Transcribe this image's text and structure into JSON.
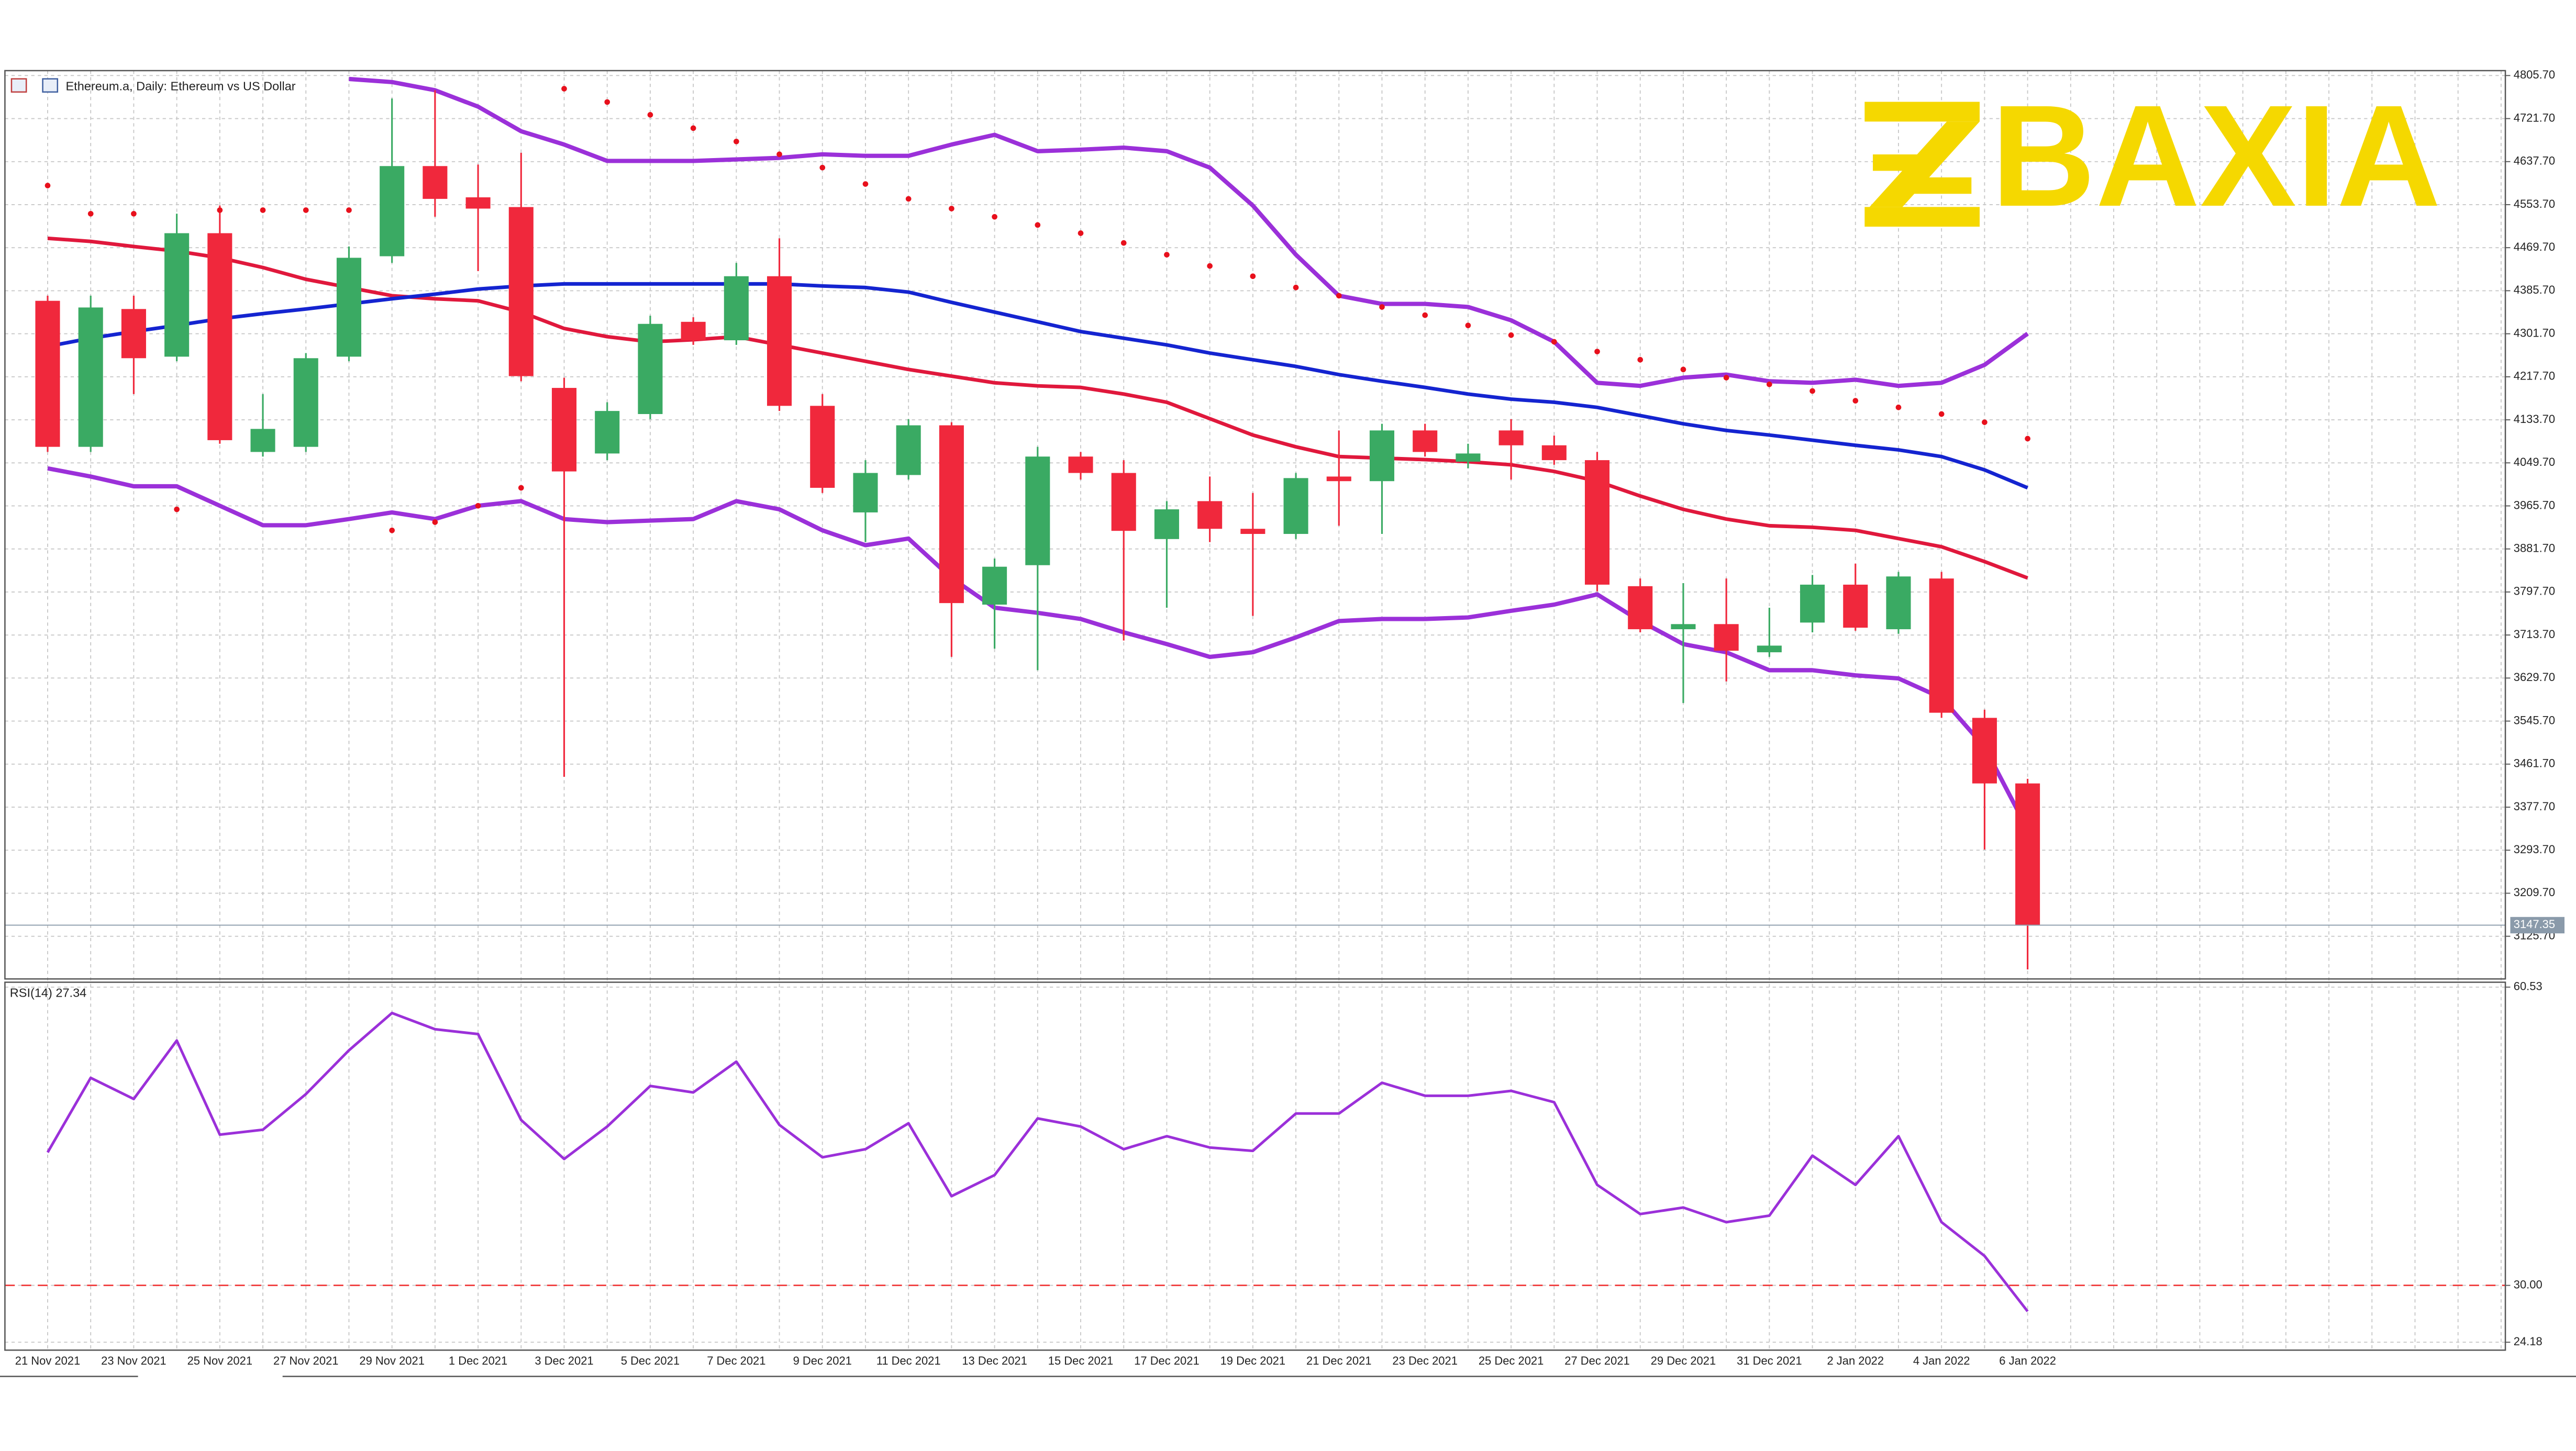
{
  "chart_data": [
    {
      "type": "candlestick",
      "title": "Ethereum.a, Daily: Ethereum vs US Dollar",
      "brand": "BAXIA",
      "categories": [
        "21 Nov 2021",
        null,
        "23 Nov 2021",
        null,
        "25 Nov 2021",
        null,
        "27 Nov 2021",
        null,
        "29 Nov 2021",
        null,
        "1 Dec 2021",
        null,
        "3 Dec 2021",
        null,
        "5 Dec 2021",
        null,
        "7 Dec 2021",
        null,
        "9 Dec 2021",
        null,
        "11 Dec 2021",
        null,
        "13 Dec 2021",
        null,
        "15 Dec 2021",
        null,
        "17 Dec 2021",
        null,
        "19 Dec 2021",
        null,
        "21 Dec 2021",
        null,
        "23 Dec 2021",
        null,
        "25 Dec 2021",
        null,
        "27 Dec 2021",
        null,
        "29 Dec 2021",
        null,
        "31 Dec 2021",
        null,
        "2 Jan 2022",
        null,
        "4 Jan 2022",
        null,
        "6 Jan 2022"
      ],
      "open": [
        4366,
        4081,
        4350,
        4257,
        4498,
        4071,
        4081,
        4257,
        4453,
        4629,
        4568,
        4549,
        4196,
        4068,
        4145,
        4325,
        4289,
        4414,
        4161,
        3953,
        4026,
        4123,
        3773,
        3850,
        4062,
        4030,
        3901,
        3975,
        3921,
        3911,
        4023,
        4014,
        4113,
        4052,
        4113,
        4084,
        4055,
        3809,
        3725,
        3735,
        3680,
        3738,
        3812,
        3725,
        3824,
        3552,
        3424
      ],
      "high": [
        4376,
        4376,
        4376,
        4536,
        4552,
        4184,
        4264,
        4472,
        4761,
        4777,
        4632,
        4655,
        4216,
        4168,
        4337,
        4334,
        4440,
        4488,
        4184,
        4055,
        4135,
        4129,
        3863,
        4081,
        4071,
        4055,
        3975,
        4023,
        3991,
        4030,
        4113,
        4126,
        4126,
        4087,
        4135,
        4103,
        4071,
        3824,
        3815,
        3824,
        3767,
        3831,
        3853,
        3837,
        3837,
        3568,
        3433
      ],
      "low": [
        4071,
        4071,
        4184,
        4248,
        4087,
        4062,
        4071,
        4248,
        4440,
        4530,
        4424,
        4209,
        3437,
        4055,
        4135,
        4280,
        4280,
        4151,
        3991,
        3895,
        4017,
        3671,
        3687,
        3645,
        4017,
        3703,
        3767,
        3895,
        3751,
        3901,
        3927,
        3911,
        4062,
        4039,
        4017,
        4046,
        3799,
        3719,
        3581,
        3623,
        3671,
        3719,
        3722,
        3716,
        3552,
        3295,
        3061
      ],
      "close": [
        4081,
        4353,
        4254,
        4498,
        4094,
        4116,
        4254,
        4450,
        4629,
        4565,
        4546,
        4219,
        4033,
        4151,
        4321,
        4289,
        4414,
        4161,
        4001,
        4030,
        4123,
        3776,
        3847,
        4062,
        4030,
        3917,
        3959,
        3921,
        3911,
        4020,
        4014,
        4113,
        4071,
        4068,
        4084,
        4055,
        3812,
        3725,
        3735,
        3683,
        3693,
        3812,
        3728,
        3828,
        3562,
        3424,
        3147.35
      ],
      "up_color": "#3aaa63",
      "down_color": "#f0283c",
      "series": [
        {
          "color": "#9b30d9",
          "values": [
            null,
            null,
            null,
            null,
            null,
            null,
            null,
            4799,
            4793,
            4777,
            4745,
            4697,
            4671,
            4639,
            4639,
            4639,
            4642,
            4645,
            4652,
            4649,
            4649,
            4671,
            4690,
            4658,
            4661,
            4665,
            4658,
            4626,
            4552,
            4456,
            4376,
            4360,
            4360,
            4354,
            4328,
            4286,
            4206,
            4200,
            4216,
            4222,
            4209,
            4206,
            4212,
            4200,
            4206,
            4241,
            4302
          ]
        },
        {
          "color": "#9b30d9",
          "values": [
            4039,
            4023,
            4004,
            4004,
            3966,
            3928,
            3928,
            3940,
            3953,
            3940,
            3966,
            3975,
            3940,
            3934,
            3937,
            3940,
            3975,
            3959,
            3918,
            3889,
            3902,
            3825,
            3767,
            3757,
            3745,
            3719,
            3696,
            3671,
            3680,
            3709,
            3741,
            3745,
            3745,
            3748,
            3761,
            3773,
            3793,
            3741,
            3696,
            3680,
            3645,
            3645,
            3635,
            3629,
            3591,
            3495,
            3334
          ]
        },
        {
          "color": "#e0183c",
          "values": [
            4488,
            4482,
            4472,
            4463,
            4450,
            4431,
            4408,
            4392,
            4376,
            4370,
            4366,
            4344,
            4312,
            4296,
            4286,
            4290,
            4296,
            4280,
            4264,
            4248,
            4232,
            4219,
            4206,
            4200,
            4197,
            4184,
            4168,
            4136,
            4104,
            4081,
            4062,
            4059,
            4056,
            4052,
            4046,
            4033,
            4014,
            3985,
            3959,
            3940,
            3927,
            3924,
            3918,
            3902,
            3886,
            3857,
            3825
          ]
        },
        {
          "color": "#1424d0",
          "values": [
            4277,
            4293,
            4306,
            4318,
            4331,
            4341,
            4350,
            4360,
            4370,
            4379,
            4389,
            4395,
            4399,
            4399,
            4399,
            4399,
            4399,
            4399,
            4395,
            4392,
            4383,
            4363,
            4344,
            4325,
            4306,
            4293,
            4280,
            4264,
            4251,
            4238,
            4222,
            4209,
            4197,
            4184,
            4174,
            4168,
            4158,
            4142,
            4126,
            4113,
            4104,
            4094,
            4084,
            4075,
            4062,
            4036,
            4001
          ]
        }
      ],
      "markers": {
        "color": "#e8101c",
        "values": [
          4591,
          4536,
          4536,
          3959,
          4543,
          4543,
          4543,
          4543,
          3918,
          3934,
          3966,
          4001,
          4780,
          4754,
          4729,
          4703,
          4677,
          4652,
          4626,
          4594,
          4565,
          4546,
          4530,
          4514,
          4498,
          4479,
          4456,
          4434,
          4414,
          4392,
          4376,
          4354,
          4338,
          4318,
          4299,
          4286,
          4267,
          4251,
          4232,
          4216,
          4203,
          4190,
          4171,
          4158,
          4145,
          4129,
          4097
        ]
      },
      "ylim": [
        3042.4,
        4815.3
      ],
      "yticks": [
        {
          "value": 4805.7,
          "label": "4805.70"
        },
        {
          "value": 4721.7,
          "label": "4721.70"
        },
        {
          "value": 4637.7,
          "label": "4637.70"
        },
        {
          "value": 4553.7,
          "label": "4553.70"
        },
        {
          "value": 4469.7,
          "label": "4469.70"
        },
        {
          "value": 4385.7,
          "label": "4385.70"
        },
        {
          "value": 4301.7,
          "label": "4301.70"
        },
        {
          "value": 4217.7,
          "label": "4217.70"
        },
        {
          "value": 4133.7,
          "label": "4133.70"
        },
        {
          "value": 4049.7,
          "label": "4049.70"
        },
        {
          "value": 3965.7,
          "label": "3965.70"
        },
        {
          "value": 3881.7,
          "label": "3881.70"
        },
        {
          "value": 3797.7,
          "label": "3797.70"
        },
        {
          "value": 3713.7,
          "label": "3713.70"
        },
        {
          "value": 3629.7,
          "label": "3629.70"
        },
        {
          "value": 3545.7,
          "label": "3545.70"
        },
        {
          "value": 3461.7,
          "label": "3461.70"
        },
        {
          "value": 3377.7,
          "label": "3377.70"
        },
        {
          "value": 3293.7,
          "label": "3293.70"
        },
        {
          "value": 3209.7,
          "label": "3209.70"
        },
        {
          "value": 3125.7,
          "label": "3125.70"
        }
      ],
      "grid": true
    },
    {
      "type": "line",
      "title": "RSI(14)",
      "color": "#9b30d9",
      "values": [
        43.61,
        51.24,
        49.08,
        55.06,
        45.43,
        45.93,
        49.58,
        54.06,
        57.88,
        56.22,
        55.72,
        46.93,
        42.94,
        46.26,
        50.41,
        49.75,
        52.9,
        46.43,
        43.11,
        43.94,
        46.59,
        39.13,
        41.29,
        47.09,
        46.26,
        43.94,
        45.27,
        44.11,
        43.77,
        47.59,
        47.59,
        50.74,
        49.41,
        49.41,
        49.91,
        48.75,
        40.29,
        37.3,
        37.97,
        36.47,
        37.14,
        43.28,
        40.29,
        45.27,
        36.47,
        33.01,
        27.34
      ],
      "ylim": [
        23.37,
        61.03
      ],
      "yticks": [
        60.53,
        {
          "value": 30,
          "label": "30.00"
        },
        24.18
      ],
      "levels": [
        30
      ],
      "level_color": "#f04040",
      "grid": true
    }
  ]
}
